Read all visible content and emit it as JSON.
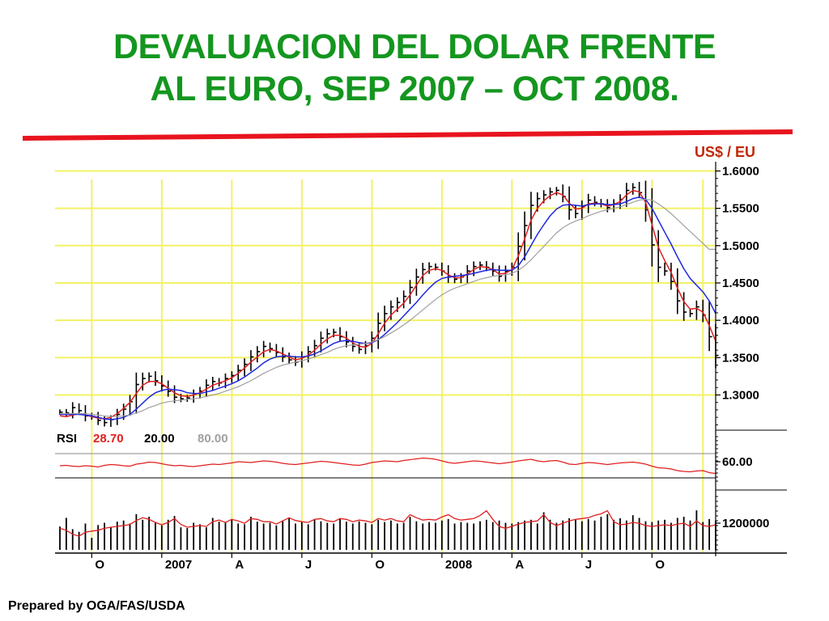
{
  "slide": {
    "title_line1": "DEVALUACION DEL DOLAR FRENTE",
    "title_line2": "AL EURO, SEP 2007 – OCT 2008.",
    "footer": "Prepared by OGA/FAS/USDA",
    "colors": {
      "title": "#14961f",
      "divider": "#e8141e",
      "unit_label": "#c0280a",
      "gridline": "#f2f266",
      "fast_average": "#e01e1e",
      "slow_average": "#1e28e0",
      "long_average": "#a0a0a0"
    }
  },
  "chart_data": {
    "type": "line",
    "unit_label": "US$ / EU",
    "price": {
      "y_ticks": [
        "1.6000",
        "1.5500",
        "1.5000",
        "1.4500",
        "1.4000",
        "1.3500",
        "1.3000"
      ],
      "ylim": [
        1.255,
        1.607
      ],
      "grid": true,
      "close": [
        1.277,
        1.276,
        1.283,
        1.279,
        1.272,
        1.271,
        1.266,
        1.263,
        1.267,
        1.274,
        1.281,
        1.291,
        1.314,
        1.322,
        1.325,
        1.319,
        1.312,
        1.305,
        1.297,
        1.295,
        1.296,
        1.301,
        1.305,
        1.313,
        1.318,
        1.316,
        1.322,
        1.326,
        1.333,
        1.341,
        1.351,
        1.358,
        1.365,
        1.362,
        1.357,
        1.351,
        1.347,
        1.344,
        1.351,
        1.358,
        1.366,
        1.376,
        1.382,
        1.384,
        1.378,
        1.371,
        1.365,
        1.361,
        1.366,
        1.376,
        1.396,
        1.409,
        1.418,
        1.424,
        1.432,
        1.444,
        1.458,
        1.468,
        1.472,
        1.471,
        1.466,
        1.458,
        1.455,
        1.458,
        1.466,
        1.472,
        1.474,
        1.471,
        1.466,
        1.459,
        1.466,
        1.471,
        1.499,
        1.527,
        1.554,
        1.563,
        1.568,
        1.572,
        1.574,
        1.566,
        1.548,
        1.543,
        1.552,
        1.561,
        1.558,
        1.556,
        1.551,
        1.556,
        1.562,
        1.574,
        1.578,
        1.571,
        1.548,
        1.501,
        1.471,
        1.466,
        1.452,
        1.426,
        1.411,
        1.409,
        1.418,
        1.407,
        1.378,
        1.353
      ],
      "series": [
        {
          "name": "",
          "values": [
            1.272,
            1.271,
            1.273,
            1.275,
            1.273,
            1.271,
            1.269,
            1.268,
            1.27,
            1.275,
            1.282,
            1.29,
            1.302,
            1.313,
            1.318,
            1.318,
            1.315,
            1.309,
            1.303,
            1.299,
            1.298,
            1.3,
            1.303,
            1.308,
            1.313,
            1.316,
            1.319,
            1.323,
            1.329,
            1.336,
            1.344,
            1.351,
            1.358,
            1.361,
            1.359,
            1.355,
            1.351,
            1.347,
            1.349,
            1.353,
            1.36,
            1.368,
            1.375,
            1.38,
            1.38,
            1.376,
            1.37,
            1.365,
            1.364,
            1.369,
            1.382,
            1.396,
            1.407,
            1.415,
            1.423,
            1.434,
            1.447,
            1.46,
            1.467,
            1.469,
            1.467,
            1.461,
            1.457,
            1.457,
            1.462,
            1.468,
            1.472,
            1.471,
            1.468,
            1.462,
            1.463,
            1.468,
            1.486,
            1.509,
            1.534,
            1.55,
            1.56,
            1.567,
            1.571,
            1.568,
            1.557,
            1.549,
            1.55,
            1.556,
            1.557,
            1.556,
            1.553,
            1.555,
            1.559,
            1.568,
            1.574,
            1.572,
            1.558,
            1.528,
            1.498,
            1.48,
            1.464,
            1.443,
            1.425,
            1.415,
            1.416,
            1.411,
            1.393,
            1.372
          ]
        },
        {
          "name": "",
          "values": [
            1.274,
            1.274,
            1.274,
            1.274,
            1.273,
            1.272,
            1.27,
            1.268,
            1.267,
            1.268,
            1.27,
            1.274,
            1.281,
            1.289,
            1.297,
            1.303,
            1.306,
            1.308,
            1.307,
            1.306,
            1.303,
            1.302,
            1.302,
            1.304,
            1.306,
            1.309,
            1.312,
            1.315,
            1.319,
            1.324,
            1.33,
            1.336,
            1.343,
            1.348,
            1.351,
            1.352,
            1.352,
            1.351,
            1.351,
            1.352,
            1.355,
            1.359,
            1.364,
            1.369,
            1.372,
            1.373,
            1.372,
            1.37,
            1.369,
            1.37,
            1.374,
            1.381,
            1.389,
            1.397,
            1.406,
            1.415,
            1.424,
            1.434,
            1.443,
            1.451,
            1.456,
            1.458,
            1.459,
            1.46,
            1.461,
            1.463,
            1.465,
            1.467,
            1.468,
            1.467,
            1.467,
            1.467,
            1.473,
            1.485,
            1.5,
            1.515,
            1.528,
            1.54,
            1.549,
            1.554,
            1.555,
            1.554,
            1.553,
            1.555,
            1.556,
            1.556,
            1.555,
            1.555,
            1.556,
            1.559,
            1.563,
            1.565,
            1.562,
            1.55,
            1.534,
            1.518,
            1.502,
            1.485,
            1.469,
            1.456,
            1.447,
            1.438,
            1.426,
            1.409
          ]
        },
        {
          "name": "",
          "values": [
            1.275,
            1.275,
            1.275,
            1.275,
            1.275,
            1.274,
            1.273,
            1.272,
            1.271,
            1.271,
            1.272,
            1.273,
            1.276,
            1.279,
            1.283,
            1.286,
            1.289,
            1.291,
            1.292,
            1.293,
            1.294,
            1.295,
            1.296,
            1.298,
            1.3,
            1.302,
            1.305,
            1.308,
            1.311,
            1.315,
            1.319,
            1.324,
            1.329,
            1.333,
            1.337,
            1.34,
            1.342,
            1.344,
            1.346,
            1.348,
            1.351,
            1.354,
            1.357,
            1.361,
            1.364,
            1.366,
            1.367,
            1.368,
            1.369,
            1.371,
            1.374,
            1.378,
            1.383,
            1.388,
            1.394,
            1.4,
            1.407,
            1.414,
            1.421,
            1.428,
            1.434,
            1.439,
            1.443,
            1.446,
            1.449,
            1.452,
            1.455,
            1.457,
            1.459,
            1.46,
            1.461,
            1.463,
            1.467,
            1.473,
            1.481,
            1.49,
            1.499,
            1.508,
            1.517,
            1.524,
            1.529,
            1.533,
            1.536,
            1.54,
            1.543,
            1.546,
            1.548,
            1.55,
            1.552,
            1.555,
            1.558,
            1.561,
            1.562,
            1.561,
            1.556,
            1.55,
            1.543,
            1.535,
            1.527,
            1.519,
            1.511,
            1.503,
            1.495,
            1.495
          ]
        }
      ]
    },
    "rsi": {
      "label": "RSI",
      "values_text": [
        "28.70",
        "20.00",
        "80.00"
      ],
      "y_tick": "60.00",
      "line": [
        48,
        49,
        47,
        46,
        48,
        47,
        45,
        49,
        51,
        50,
        48,
        47,
        52,
        54,
        57,
        56,
        53,
        50,
        48,
        49,
        47,
        46,
        48,
        50,
        52,
        51,
        53,
        55,
        58,
        57,
        56,
        58,
        60,
        59,
        57,
        54,
        52,
        51,
        53,
        55,
        57,
        59,
        58,
        56,
        54,
        52,
        50,
        49,
        52,
        56,
        58,
        60,
        59,
        58,
        61,
        63,
        65,
        67,
        66,
        64,
        60,
        56,
        54,
        56,
        58,
        60,
        59,
        57,
        55,
        53,
        55,
        57,
        60,
        62,
        64,
        60,
        58,
        60,
        61,
        57,
        52,
        51,
        54,
        56,
        55,
        53,
        51,
        53,
        55,
        56,
        57,
        55,
        52,
        47,
        43,
        42,
        40,
        36,
        34,
        33,
        35,
        36,
        31,
        28.7
      ]
    },
    "volume": {
      "y_tick": "1200000",
      "bars": [
        0.62,
        0.85,
        0.55,
        0.48,
        0.7,
        0.32,
        0.66,
        0.72,
        0.6,
        0.75,
        0.78,
        0.7,
        0.95,
        0.8,
        0.88,
        0.72,
        0.65,
        0.8,
        0.9,
        0.6,
        0.58,
        0.72,
        0.68,
        0.6,
        0.85,
        0.75,
        0.72,
        0.82,
        0.7,
        0.68,
        0.88,
        0.75,
        0.7,
        0.72,
        0.65,
        0.78,
        0.85,
        0.7,
        0.74,
        0.68,
        0.8,
        0.76,
        0.72,
        0.7,
        0.82,
        0.75,
        0.7,
        0.76,
        0.72,
        0.68,
        0.8,
        0.74,
        0.78,
        0.7,
        0.72,
        0.88,
        0.76,
        0.7,
        0.74,
        0.72,
        0.78,
        0.82,
        0.7,
        0.74,
        0.72,
        0.7,
        0.76,
        0.8,
        0.74,
        0.78,
        0.72,
        0.7,
        0.74,
        0.78,
        0.8,
        0.7,
        1.0,
        0.8,
        0.72,
        0.78,
        0.84,
        0.8,
        0.76,
        0.82,
        0.78,
        0.88,
        0.95,
        0.8,
        0.84,
        0.78,
        0.92,
        0.85,
        0.76,
        0.74,
        0.78,
        0.8,
        0.72,
        0.85,
        0.88,
        0.78,
        1.05,
        0.74,
        0.82,
        0.78
      ],
      "line": [
        0.55,
        0.5,
        0.4,
        0.35,
        0.45,
        0.48,
        0.5,
        0.55,
        0.58,
        0.6,
        0.62,
        0.65,
        0.75,
        0.82,
        0.78,
        0.7,
        0.64,
        0.7,
        0.8,
        0.65,
        0.58,
        0.6,
        0.62,
        0.6,
        0.72,
        0.76,
        0.7,
        0.78,
        0.74,
        0.68,
        0.8,
        0.78,
        0.72,
        0.72,
        0.66,
        0.74,
        0.82,
        0.75,
        0.72,
        0.7,
        0.78,
        0.8,
        0.74,
        0.72,
        0.8,
        0.78,
        0.72,
        0.76,
        0.74,
        0.7,
        0.8,
        0.76,
        0.8,
        0.74,
        0.72,
        0.9,
        0.82,
        0.76,
        0.78,
        0.76,
        0.84,
        0.9,
        0.8,
        0.76,
        0.78,
        0.8,
        0.88,
        1.0,
        0.78,
        0.6,
        0.55,
        0.6,
        0.66,
        0.7,
        0.72,
        0.74,
        0.9,
        0.7,
        0.62,
        0.68,
        0.74,
        0.78,
        0.8,
        0.82,
        0.88,
        0.92,
        1.0,
        0.72,
        0.64,
        0.66,
        0.7,
        0.68,
        0.62,
        0.6,
        0.62,
        0.64,
        0.62,
        0.66,
        0.68,
        0.6,
        0.74,
        0.62,
        0.6,
        0.64
      ]
    },
    "x_ticks": [
      "O",
      "2007",
      "A",
      "J",
      "O",
      "2008",
      "A",
      "J",
      "O"
    ],
    "x_tick_bars": [
      5,
      16,
      27,
      38,
      49,
      60,
      71,
      82,
      93,
      101
    ]
  }
}
